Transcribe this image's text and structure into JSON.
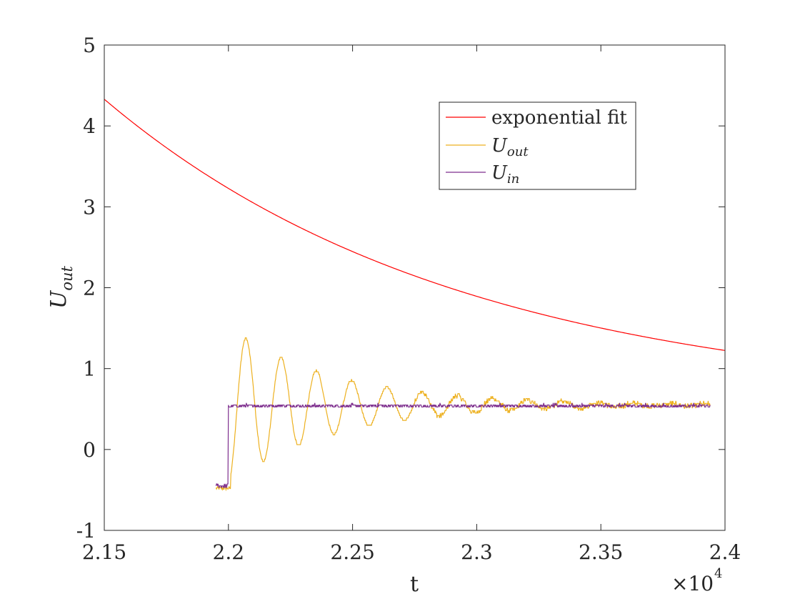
{
  "chart_data": {
    "type": "line",
    "xlabel": "t",
    "ylabel": {
      "base": "U",
      "subscript": "out"
    },
    "xlim": [
      21500,
      24000
    ],
    "ylim": [
      -1,
      5
    ],
    "x_ticks": [
      21500,
      22000,
      22500,
      23000,
      23500,
      24000
    ],
    "x_tick_labels": [
      "2.15",
      "2.2",
      "2.25",
      "2.3",
      "2.35",
      "2.4"
    ],
    "x_exponent": {
      "base": "×10",
      "power": "4"
    },
    "y_ticks": [
      -1,
      0,
      1,
      2,
      3,
      4,
      5
    ],
    "y_tick_labels": [
      "-1",
      "0",
      "1",
      "2",
      "3",
      "4",
      "5"
    ],
    "grid": false,
    "legend_position": "top-right",
    "series": [
      {
        "name": "exponential fit",
        "color": "#ff0000",
        "model": {
          "form": "a*exp(-(x-x0)/tau)+c",
          "a": 3.78,
          "x0": 21500,
          "tau": 1450,
          "c": 0.55
        },
        "x": [
          21500,
          21600,
          21700,
          21800,
          21900,
          22000,
          22100,
          22200,
          22300,
          22400,
          22500,
          22600,
          22700,
          22800,
          22900,
          23000,
          23200,
          23400,
          23600,
          23800,
          24000
        ],
        "y": [
          4.33,
          4.07,
          3.83,
          3.6,
          3.4,
          3.22,
          3.05,
          2.9,
          2.76,
          2.64,
          2.53,
          2.43,
          2.34,
          2.26,
          2.19,
          2.12,
          2.01,
          1.92,
          1.84,
          1.78,
          1.73
        ]
      },
      {
        "name": "U_out",
        "color": "#edb120",
        "model": {
          "form": "damped-oscillation",
          "start": 21950,
          "initial": -0.48,
          "step": 22000,
          "offset": 0.55,
          "amplitude": 0.97,
          "decay_tau": 430,
          "period": 142,
          "noise": 0.03,
          "end": 23940
        },
        "peaks": [
          [
            22075,
            1.3
          ],
          [
            22215,
            1.05
          ],
          [
            22357,
            0.87
          ],
          [
            22500,
            0.75
          ],
          [
            22645,
            0.68
          ],
          [
            22790,
            0.63
          ]
        ],
        "troughs": [
          [
            22145,
            -0.12
          ],
          [
            22287,
            0.08
          ],
          [
            22428,
            0.22
          ],
          [
            22573,
            0.32
          ],
          [
            22717,
            0.38
          ],
          [
            22860,
            0.42
          ]
        ]
      },
      {
        "name": "U_in",
        "color": "#7e2f8e",
        "model": {
          "form": "step",
          "start": 21950,
          "low": -0.45,
          "step": 22000,
          "high": 0.54,
          "noise": 0.03,
          "end": 23940
        }
      }
    ],
    "legend_entries": [
      {
        "text": "exponential fit",
        "color": "#ff0000"
      },
      {
        "base": "U",
        "subscript": "out",
        "color": "#edb120"
      },
      {
        "base": "U",
        "subscript": "in",
        "color": "#7e2f8e"
      }
    ]
  }
}
